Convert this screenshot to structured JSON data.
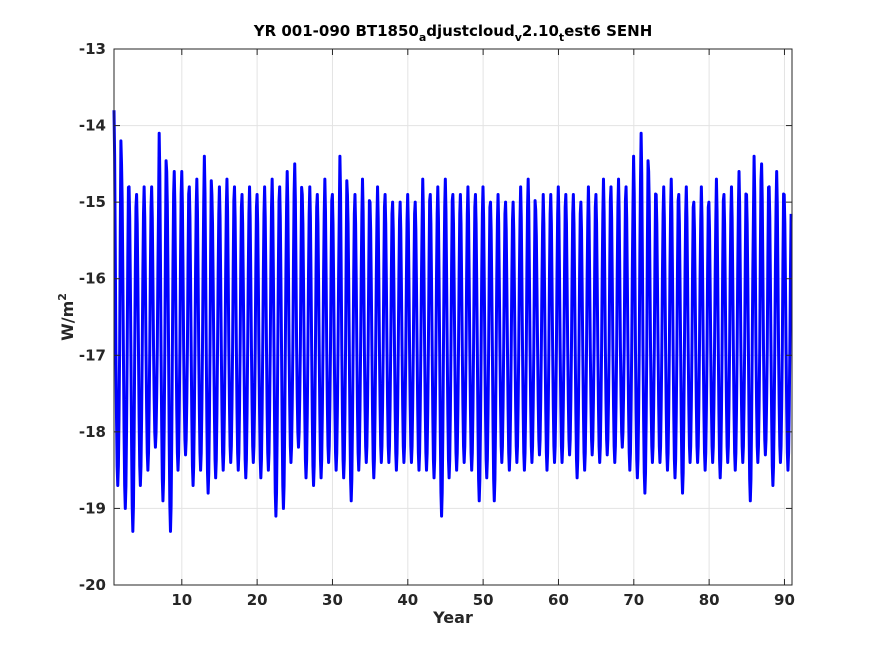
{
  "chart_data": {
    "type": "line",
    "title": {
      "parts": [
        {
          "text": "YR 001-090 BT1850",
          "sub": false
        },
        {
          "text": "a",
          "sub": true
        },
        {
          "text": "djustcloud",
          "sub": false
        },
        {
          "text": "v",
          "sub": true
        },
        {
          "text": "2.10",
          "sub": false
        },
        {
          "text": "t",
          "sub": true
        },
        {
          "text": "est6 SENH",
          "sub": false
        }
      ]
    },
    "xlabel": "Year",
    "ylabel": {
      "base": "W/m",
      "sup": "2"
    },
    "xlim": [
      1,
      91
    ],
    "ylim": [
      -20,
      -13
    ],
    "xticks": [
      "10",
      "20",
      "30",
      "40",
      "50",
      "60",
      "70",
      "80",
      "90"
    ],
    "yticks": [
      "-20",
      "-19",
      "-18",
      "-17",
      "-16",
      "-15",
      "-14",
      "-13"
    ],
    "grid": true,
    "series": [
      {
        "color": "#0000ff",
        "x_start": 1.0,
        "x_step": 0.0833,
        "cycle": [
          -15.3,
          -15.6,
          -16.2,
          -16.9,
          -17.6,
          -18.1,
          -18.3,
          -18.1,
          -17.6,
          -16.9,
          -16.1,
          -15.5
        ],
        "annual_peaks": [
          -13.8,
          -14.5,
          -14.8,
          -14.9,
          -14.8,
          -14.8,
          -14.1,
          -14.6,
          -14.6,
          -14.6,
          -14.8,
          -14.7,
          -14.4,
          -14.9,
          -14.8,
          -14.7,
          -14.8,
          -14.9,
          -14.8,
          -14.9,
          -14.8,
          -14.7,
          -14.8,
          -14.6,
          -14.5,
          -14.9,
          -14.8,
          -14.9,
          -14.7,
          -14.9,
          -14.4,
          -14.9,
          -14.9,
          -14.7,
          -15.0,
          -14.8,
          -14.9,
          -15.0,
          -15.0,
          -14.9,
          -15.0,
          -14.7,
          -14.9,
          -14.8,
          -14.7,
          -14.9,
          -14.9,
          -14.8,
          -14.9,
          -14.8,
          -15.0,
          -14.9,
          -15.0,
          -15.0,
          -14.8,
          -14.7,
          -15.1,
          -14.9,
          -14.9,
          -14.8,
          -14.9,
          -14.9,
          -15.0,
          -14.8,
          -14.9,
          -14.7,
          -14.8,
          -14.7,
          -14.8,
          -14.4,
          -14.1,
          -14.6,
          -14.9,
          -14.8,
          -14.7,
          -14.9,
          -14.8,
          -15.0,
          -14.8,
          -15.0,
          -14.7,
          -14.9,
          -14.8,
          -14.6,
          -14.9,
          -14.4,
          -14.5,
          -14.8,
          -14.6,
          -14.9
        ],
        "annual_troughs": [
          -18.7,
          -19.0,
          -19.3,
          -18.7,
          -18.5,
          -18.2,
          -18.9,
          -19.3,
          -18.5,
          -18.3,
          -18.7,
          -18.5,
          -18.8,
          -18.6,
          -18.5,
          -18.4,
          -18.5,
          -18.6,
          -18.4,
          -18.6,
          -18.5,
          -19.1,
          -19.0,
          -18.4,
          -18.2,
          -18.6,
          -18.7,
          -18.6,
          -18.4,
          -18.5,
          -18.6,
          -18.9,
          -18.5,
          -18.4,
          -18.6,
          -18.4,
          -18.4,
          -18.5,
          -18.4,
          -18.4,
          -18.5,
          -18.5,
          -18.6,
          -19.1,
          -18.6,
          -18.5,
          -18.4,
          -18.5,
          -18.9,
          -18.6,
          -18.9,
          -18.4,
          -18.5,
          -18.4,
          -18.5,
          -18.4,
          -18.3,
          -18.5,
          -18.4,
          -18.4,
          -18.3,
          -18.6,
          -18.5,
          -18.3,
          -18.4,
          -18.3,
          -18.4,
          -18.2,
          -18.5,
          -18.6,
          -18.8,
          -18.4,
          -18.4,
          -18.5,
          -18.6,
          -18.8,
          -18.4,
          -18.4,
          -18.5,
          -18.4,
          -18.6,
          -18.4,
          -18.5,
          -18.4,
          -18.9,
          -18.4,
          -18.3,
          -18.7,
          -18.4,
          -18.5
        ]
      }
    ]
  }
}
